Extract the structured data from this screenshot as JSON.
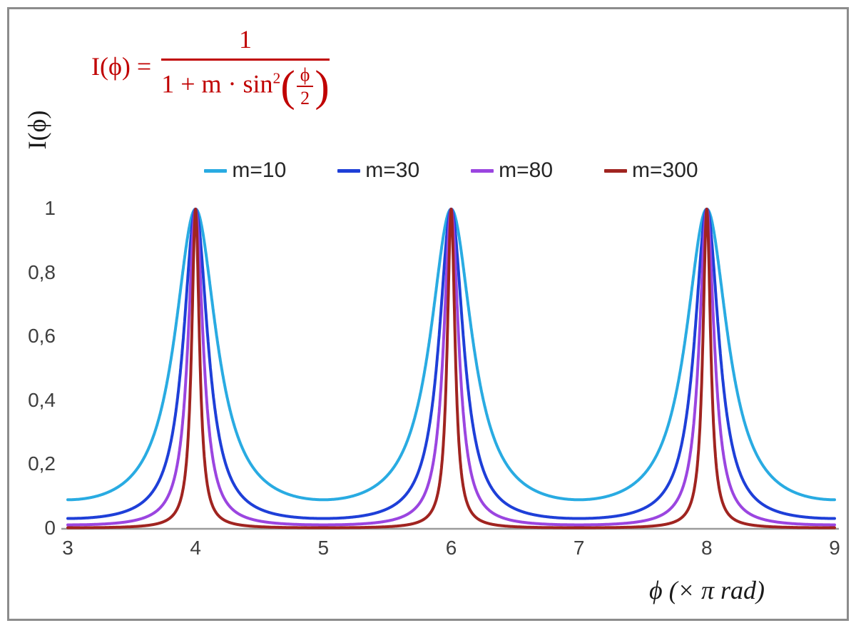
{
  "frame": {
    "border_color": "#8c8c8c"
  },
  "formula": {
    "lhs": "I(ϕ) =",
    "numerator": "1",
    "den_prefix": "1 + m · sin",
    "den_exponent": "2",
    "open_paren": "(",
    "inner_numerator": "ϕ",
    "inner_denominator": "2",
    "close_paren": ")",
    "color": "#C00000"
  },
  "chart_data": {
    "type": "line",
    "title": "",
    "xlabel": "ϕ  (× π rad)",
    "ylabel": "I(ϕ)",
    "function": "I(phi) = 1 / (1 + m * sin^2(phi/2)), with x axis in units of pi rad (phi = x*pi)",
    "x_range": [
      3,
      9
    ],
    "y_range": [
      0,
      1
    ],
    "x_ticks": [
      3,
      4,
      5,
      6,
      7,
      8,
      9
    ],
    "y_tick_values": [
      0,
      0.2,
      0.4,
      0.6,
      0.8,
      1
    ],
    "y_tick_labels": [
      "0",
      "0,2",
      "0,4",
      "0,6",
      "0,8",
      "1"
    ],
    "peaks_x": [
      4,
      6,
      8
    ],
    "peak_value": 1,
    "grid": false,
    "legend_position": "top",
    "axis_color": "#9b9b9b",
    "series": [
      {
        "name": "m=10",
        "m": 10,
        "color": "#29ABE2"
      },
      {
        "name": "m=30",
        "m": 30,
        "color": "#1E3FD8"
      },
      {
        "name": "m=80",
        "m": 80,
        "color": "#9B45E0"
      },
      {
        "name": "m=300",
        "m": 300,
        "color": "#A02420"
      }
    ]
  }
}
